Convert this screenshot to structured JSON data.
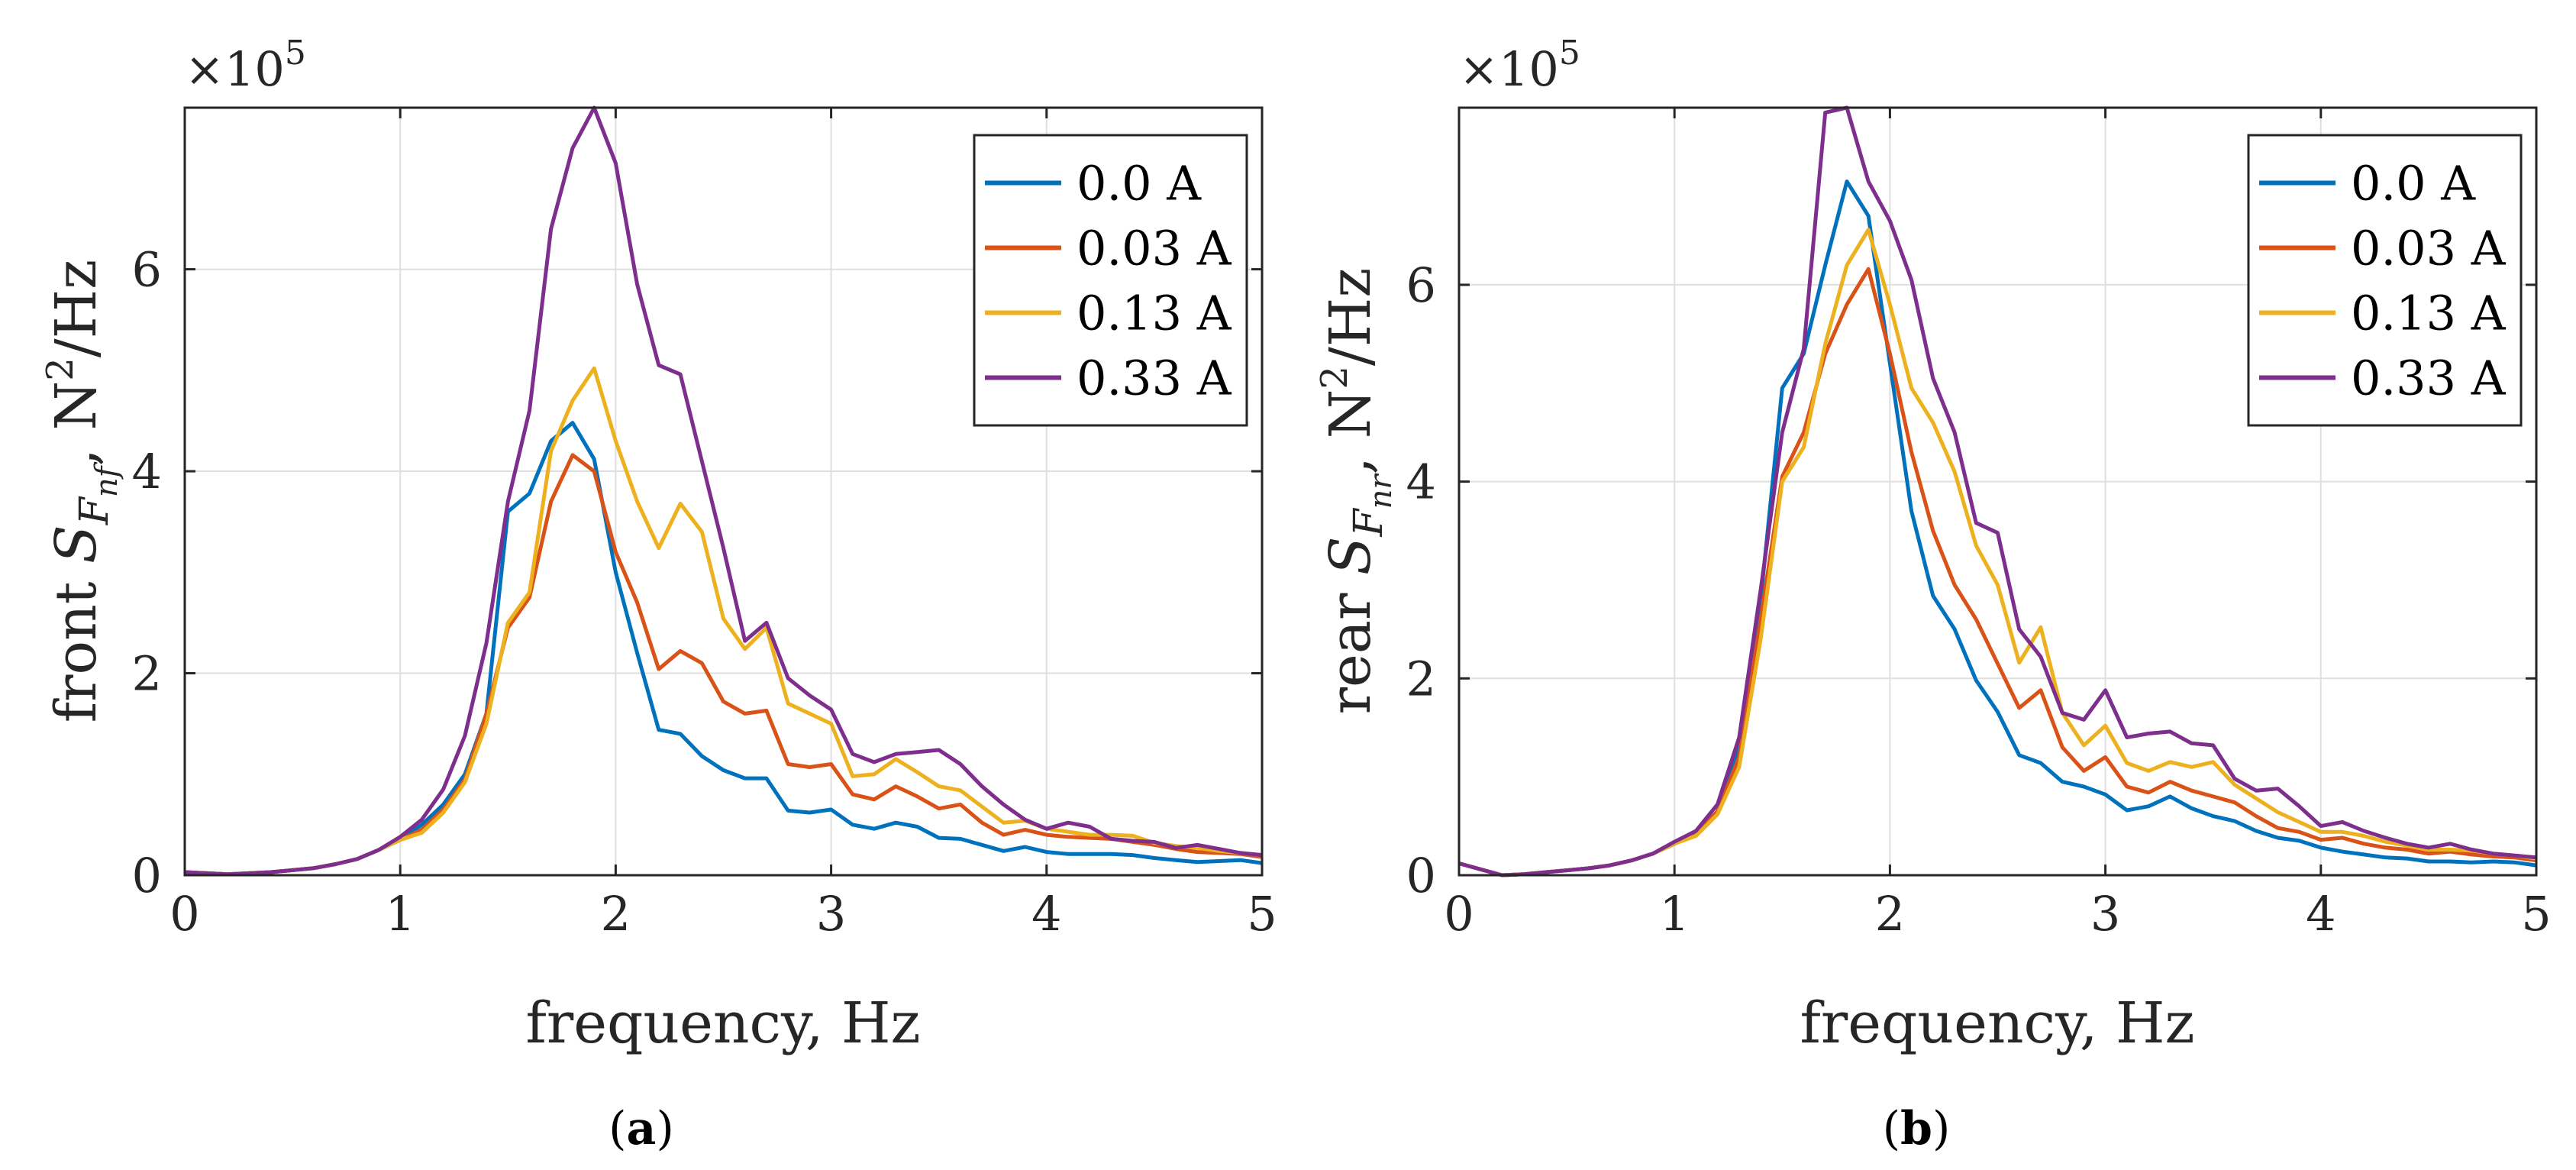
{
  "chart_data": [
    {
      "type": "line",
      "panel": "a",
      "caption_letter": "a",
      "multiplier": "×10",
      "multiplier_exp": "5",
      "xlabel": "frequency, Hz",
      "ylabel_prefix": "front ",
      "ylabel_symbol": "S",
      "ylabel_sub_F": "F",
      "ylabel_sub_sub": "nf",
      "ylabel_suffix": ", N",
      "ylabel_sup": "2",
      "ylabel_unit": "/Hz",
      "xlim": [
        0,
        5
      ],
      "ylim": [
        0,
        7.6
      ],
      "xticks": [
        "0",
        "1",
        "2",
        "3",
        "4",
        "5"
      ],
      "yticks": [
        "0",
        "2",
        "4",
        "6"
      ],
      "x": [
        0,
        0.1,
        0.2,
        0.3,
        0.4,
        0.5,
        0.6,
        0.7,
        0.8,
        0.9,
        1.0,
        1.1,
        1.2,
        1.3,
        1.4,
        1.5,
        1.6,
        1.7,
        1.8,
        1.9,
        2.0,
        2.1,
        2.2,
        2.3,
        2.4,
        2.5,
        2.6,
        2.7,
        2.8,
        2.9,
        3.0,
        3.1,
        3.2,
        3.3,
        3.4,
        3.5,
        3.6,
        3.7,
        3.8,
        3.9,
        4.0,
        4.1,
        4.2,
        4.3,
        4.4,
        4.5,
        4.6,
        4.7,
        4.8,
        4.9,
        5.0
      ],
      "series": [
        {
          "name": "0.0 A",
          "color": "#0072BD",
          "values": [
            0.03,
            0.02,
            0.01,
            0.02,
            0.03,
            0.05,
            0.07,
            0.11,
            0.16,
            0.25,
            0.35,
            0.5,
            0.7,
            1.0,
            1.6,
            3.6,
            3.78,
            4.3,
            4.48,
            4.12,
            3.0,
            2.2,
            1.44,
            1.4,
            1.18,
            1.04,
            0.96,
            0.96,
            0.64,
            0.62,
            0.65,
            0.5,
            0.46,
            0.52,
            0.48,
            0.37,
            0.36,
            0.3,
            0.24,
            0.28,
            0.23,
            0.21,
            0.21,
            0.21,
            0.2,
            0.17,
            0.15,
            0.13,
            0.14,
            0.15,
            0.12
          ]
        },
        {
          "name": "0.03 A",
          "color": "#D95319",
          "values": [
            0.03,
            0.02,
            0.01,
            0.02,
            0.03,
            0.05,
            0.07,
            0.11,
            0.16,
            0.25,
            0.35,
            0.45,
            0.65,
            0.95,
            1.6,
            2.45,
            2.75,
            3.7,
            4.16,
            4.0,
            3.2,
            2.7,
            2.04,
            2.22,
            2.1,
            1.72,
            1.6,
            1.63,
            1.1,
            1.07,
            1.1,
            0.8,
            0.75,
            0.88,
            0.78,
            0.66,
            0.7,
            0.52,
            0.4,
            0.45,
            0.4,
            0.38,
            0.37,
            0.36,
            0.33,
            0.3,
            0.26,
            0.23,
            0.22,
            0.21,
            0.18
          ]
        },
        {
          "name": "0.13 A",
          "color": "#EDB120",
          "values": [
            0.03,
            0.02,
            0.01,
            0.02,
            0.03,
            0.05,
            0.07,
            0.11,
            0.16,
            0.25,
            0.35,
            0.42,
            0.62,
            0.92,
            1.5,
            2.5,
            2.8,
            4.2,
            4.7,
            5.02,
            4.3,
            3.7,
            3.24,
            3.68,
            3.4,
            2.54,
            2.24,
            2.45,
            1.7,
            1.6,
            1.5,
            0.98,
            1.0,
            1.15,
            1.02,
            0.88,
            0.84,
            0.68,
            0.52,
            0.54,
            0.46,
            0.43,
            0.4,
            0.4,
            0.39,
            0.32,
            0.29,
            0.27,
            0.24,
            0.22,
            0.2
          ]
        },
        {
          "name": "0.33 A",
          "color": "#7E2F8E",
          "values": [
            0.03,
            0.02,
            0.01,
            0.02,
            0.03,
            0.05,
            0.07,
            0.11,
            0.16,
            0.25,
            0.38,
            0.55,
            0.85,
            1.38,
            2.3,
            3.7,
            4.6,
            6.4,
            7.2,
            7.6,
            7.05,
            5.85,
            5.05,
            4.96,
            4.1,
            3.24,
            2.32,
            2.5,
            1.95,
            1.78,
            1.64,
            1.2,
            1.12,
            1.2,
            1.22,
            1.24,
            1.1,
            0.88,
            0.7,
            0.55,
            0.46,
            0.52,
            0.48,
            0.36,
            0.34,
            0.33,
            0.27,
            0.3,
            0.26,
            0.22,
            0.2
          ]
        }
      ],
      "legend_position": "top-right"
    },
    {
      "type": "line",
      "panel": "b",
      "caption_letter": "b",
      "multiplier": "×10",
      "multiplier_exp": "5",
      "xlabel": "frequency, Hz",
      "ylabel_prefix": "rear ",
      "ylabel_symbol": "S",
      "ylabel_sub_F": "F",
      "ylabel_sub_sub": "nr",
      "ylabel_suffix": ", N",
      "ylabel_sup": "2",
      "ylabel_unit": "/Hz",
      "xlim": [
        0,
        5
      ],
      "ylim": [
        0,
        7.8
      ],
      "xticks": [
        "0",
        "1",
        "2",
        "3",
        "4",
        "5"
      ],
      "yticks": [
        "0",
        "2",
        "4",
        "6"
      ],
      "x": [
        0,
        0.1,
        0.2,
        0.3,
        0.4,
        0.5,
        0.6,
        0.7,
        0.8,
        0.9,
        1.0,
        1.1,
        1.2,
        1.3,
        1.4,
        1.5,
        1.6,
        1.7,
        1.8,
        1.9,
        2.0,
        2.1,
        2.2,
        2.3,
        2.4,
        2.5,
        2.6,
        2.7,
        2.8,
        2.9,
        3.0,
        3.1,
        3.2,
        3.3,
        3.4,
        3.5,
        3.6,
        3.7,
        3.8,
        3.9,
        4.0,
        4.1,
        4.2,
        4.3,
        4.4,
        4.5,
        4.6,
        4.7,
        4.8,
        4.9,
        5.0
      ],
      "series": [
        {
          "name": "0.0 A",
          "color": "#0072BD",
          "values": [
            0.12,
            0.06,
            0.0,
            0.01,
            0.03,
            0.05,
            0.07,
            0.1,
            0.15,
            0.22,
            0.32,
            0.42,
            0.65,
            1.3,
            2.8,
            4.95,
            5.3,
            6.2,
            7.05,
            6.7,
            5.2,
            3.7,
            2.84,
            2.5,
            1.98,
            1.66,
            1.22,
            1.14,
            0.95,
            0.9,
            0.82,
            0.66,
            0.7,
            0.8,
            0.68,
            0.6,
            0.55,
            0.45,
            0.38,
            0.35,
            0.28,
            0.24,
            0.21,
            0.18,
            0.17,
            0.14,
            0.14,
            0.13,
            0.14,
            0.13,
            0.1
          ]
        },
        {
          "name": "0.03 A",
          "color": "#D95319",
          "values": [
            0.12,
            0.06,
            0.0,
            0.01,
            0.03,
            0.05,
            0.07,
            0.1,
            0.15,
            0.22,
            0.32,
            0.42,
            0.65,
            1.2,
            2.6,
            4.05,
            4.5,
            5.3,
            5.8,
            6.16,
            5.3,
            4.3,
            3.5,
            2.95,
            2.6,
            2.15,
            1.7,
            1.88,
            1.3,
            1.06,
            1.2,
            0.9,
            0.84,
            0.95,
            0.86,
            0.8,
            0.74,
            0.6,
            0.48,
            0.44,
            0.36,
            0.38,
            0.32,
            0.28,
            0.26,
            0.22,
            0.24,
            0.21,
            0.19,
            0.18,
            0.15
          ]
        },
        {
          "name": "0.13 A",
          "color": "#EDB120",
          "values": [
            0.12,
            0.06,
            0.0,
            0.01,
            0.03,
            0.05,
            0.07,
            0.1,
            0.15,
            0.22,
            0.32,
            0.4,
            0.62,
            1.1,
            2.4,
            4.0,
            4.35,
            5.4,
            6.2,
            6.56,
            5.8,
            4.95,
            4.6,
            4.1,
            3.35,
            2.95,
            2.16,
            2.52,
            1.65,
            1.32,
            1.52,
            1.14,
            1.06,
            1.15,
            1.1,
            1.15,
            0.92,
            0.78,
            0.64,
            0.54,
            0.44,
            0.44,
            0.4,
            0.34,
            0.3,
            0.26,
            0.26,
            0.25,
            0.22,
            0.2,
            0.17
          ]
        },
        {
          "name": "0.33 A",
          "color": "#7E2F8E",
          "values": [
            0.12,
            0.06,
            0.0,
            0.01,
            0.03,
            0.05,
            0.07,
            0.1,
            0.15,
            0.22,
            0.34,
            0.45,
            0.72,
            1.4,
            2.9,
            4.5,
            5.35,
            7.75,
            7.8,
            7.05,
            6.65,
            6.05,
            5.05,
            4.5,
            3.58,
            3.48,
            2.5,
            2.22,
            1.65,
            1.58,
            1.88,
            1.4,
            1.44,
            1.46,
            1.34,
            1.32,
            0.98,
            0.86,
            0.88,
            0.7,
            0.5,
            0.54,
            0.45,
            0.38,
            0.32,
            0.28,
            0.32,
            0.26,
            0.22,
            0.2,
            0.18
          ]
        }
      ],
      "legend_position": "top-right"
    }
  ]
}
